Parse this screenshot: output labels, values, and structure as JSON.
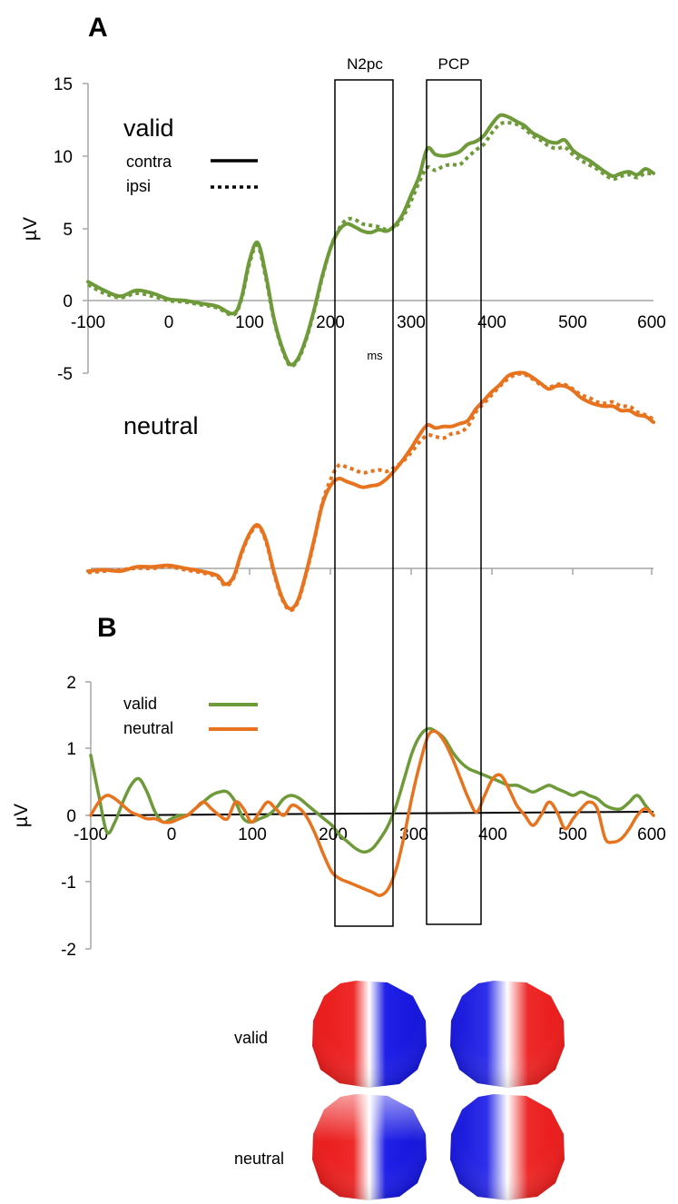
{
  "colors": {
    "valid": "#6e9a3a",
    "neutral": "#e8731e",
    "axis": "#a6a6a6",
    "red": "#e81818",
    "blue": "#1616e0"
  },
  "panel_a": {
    "letter": "A",
    "valid_title": "valid",
    "neutral_title": "neutral",
    "legend_contra": "contra",
    "legend_ipsi": "ipsi",
    "ylabel": "µV",
    "xunit": "ms",
    "yticks": [
      "15",
      "10",
      "5",
      "0",
      "-5"
    ],
    "xticks": [
      "-100",
      "0",
      "100",
      "200",
      "300",
      "400",
      "500",
      "600"
    ]
  },
  "panel_b": {
    "letter": "B",
    "ylabel": "µV",
    "legend_valid": "valid",
    "legend_neutral": "neutral",
    "yticks": [
      "2",
      "1",
      "0",
      "-1",
      "-2"
    ],
    "xticks": [
      "-100",
      "0",
      "100",
      "200",
      "300",
      "400",
      "500",
      "600"
    ]
  },
  "windows": {
    "n2pc": "N2pc",
    "pcp": "PCP"
  },
  "topo": {
    "row1": "valid",
    "row2": "neutral"
  },
  "chart_data": [
    {
      "type": "line",
      "title": "valid",
      "xlabel": "ms",
      "ylabel": "µV",
      "xlim": [
        -100,
        600
      ],
      "ylim": [
        -5,
        15
      ],
      "series": [
        {
          "name": "contra",
          "x": [
            -100,
            -80,
            -60,
            -40,
            -20,
            0,
            20,
            40,
            60,
            80,
            90,
            100,
            110,
            120,
            130,
            140,
            150,
            160,
            170,
            180,
            190,
            200,
            210,
            220,
            230,
            240,
            250,
            260,
            270,
            280,
            290,
            300,
            310,
            320,
            330,
            340,
            350,
            360,
            370,
            380,
            390,
            400,
            410,
            420,
            430,
            440,
            450,
            460,
            470,
            480,
            490,
            500,
            510,
            520,
            530,
            540,
            550,
            560,
            570,
            580,
            590,
            600
          ],
          "y": [
            1.3,
            0.7,
            0.3,
            0.7,
            0.5,
            0.1,
            0.0,
            -0.2,
            -0.4,
            -0.9,
            0.2,
            2.8,
            4.0,
            1.8,
            -1.2,
            -3.2,
            -4.4,
            -4.0,
            -2.6,
            -0.6,
            1.7,
            3.6,
            4.8,
            5.3,
            5.1,
            4.8,
            4.7,
            4.9,
            4.8,
            5.2,
            6.0,
            7.3,
            8.6,
            10.5,
            10.1,
            10.0,
            10.1,
            10.3,
            10.8,
            11.0,
            11.4,
            12.2,
            12.8,
            12.7,
            12.4,
            12.1,
            11.6,
            11.3,
            11.0,
            10.9,
            11.1,
            10.4,
            10.0,
            9.7,
            9.3,
            8.9,
            8.6,
            8.8,
            8.9,
            8.7,
            9.1,
            8.8
          ]
        },
        {
          "name": "ipsi",
          "x": [
            -100,
            -80,
            -60,
            -40,
            -20,
            0,
            20,
            40,
            60,
            80,
            90,
            100,
            110,
            120,
            130,
            140,
            150,
            160,
            170,
            180,
            190,
            200,
            210,
            220,
            230,
            240,
            250,
            260,
            270,
            280,
            290,
            300,
            310,
            320,
            330,
            340,
            350,
            360,
            370,
            380,
            390,
            400,
            410,
            420,
            430,
            440,
            450,
            460,
            470,
            480,
            490,
            500,
            510,
            520,
            530,
            540,
            550,
            560,
            570,
            580,
            590,
            600
          ],
          "y": [
            1.1,
            0.5,
            0.2,
            0.5,
            0.3,
            0.0,
            -0.1,
            -0.3,
            -0.5,
            -1.0,
            0.1,
            2.6,
            3.8,
            1.6,
            -1.3,
            -3.3,
            -4.5,
            -4.1,
            -2.7,
            -0.7,
            1.6,
            3.6,
            4.9,
            5.6,
            5.6,
            5.3,
            5.2,
            5.1,
            4.9,
            5.1,
            5.8,
            6.9,
            8.2,
            9.2,
            9.0,
            9.3,
            9.4,
            9.4,
            9.9,
            10.4,
            10.8,
            11.6,
            12.2,
            12.3,
            12.2,
            11.9,
            11.4,
            11.1,
            10.7,
            10.5,
            10.6,
            10.1,
            9.7,
            9.4,
            9.1,
            8.7,
            8.4,
            8.6,
            8.7,
            8.5,
            8.8,
            8.7
          ]
        }
      ]
    },
    {
      "type": "line",
      "title": "neutral",
      "xlim": [
        -100,
        600
      ],
      "series": [
        {
          "name": "contra",
          "x": [
            -100,
            -80,
            -60,
            -40,
            -20,
            0,
            20,
            40,
            60,
            70,
            80,
            90,
            100,
            110,
            120,
            130,
            140,
            150,
            160,
            170,
            180,
            190,
            200,
            210,
            220,
            230,
            240,
            250,
            260,
            270,
            280,
            290,
            300,
            310,
            320,
            330,
            340,
            350,
            360,
            370,
            380,
            390,
            400,
            410,
            420,
            430,
            440,
            450,
            460,
            470,
            480,
            490,
            500,
            510,
            520,
            530,
            540,
            550,
            560,
            570,
            580,
            590,
            600
          ],
          "y": [
            -10.8,
            -10.7,
            -10.8,
            -10.5,
            -10.5,
            -10.4,
            -10.6,
            -10.8,
            -11.1,
            -11.7,
            -11.2,
            -9.5,
            -8.2,
            -7.6,
            -8.6,
            -10.8,
            -12.6,
            -13.4,
            -12.8,
            -10.9,
            -8.6,
            -6.2,
            -4.9,
            -4.4,
            -4.6,
            -4.8,
            -5.0,
            -4.9,
            -4.8,
            -4.4,
            -3.8,
            -3.1,
            -2.3,
            -1.4,
            -0.7,
            -0.9,
            -0.8,
            -0.8,
            -0.6,
            -0.4,
            0.4,
            1.0,
            1.6,
            2.1,
            2.7,
            2.9,
            2.9,
            2.6,
            2.2,
            1.8,
            2.0,
            2.0,
            1.7,
            1.2,
            0.9,
            0.7,
            0.6,
            0.6,
            0.3,
            0.3,
            0.0,
            -0.1,
            -0.5
          ]
        },
        {
          "name": "ipsi",
          "x": [
            -100,
            -80,
            -60,
            -40,
            -20,
            0,
            20,
            40,
            60,
            70,
            80,
            90,
            100,
            110,
            120,
            130,
            140,
            150,
            160,
            170,
            180,
            190,
            200,
            210,
            220,
            230,
            240,
            250,
            260,
            270,
            280,
            290,
            300,
            310,
            320,
            330,
            340,
            350,
            360,
            370,
            380,
            390,
            400,
            410,
            420,
            430,
            440,
            450,
            460,
            470,
            480,
            490,
            500,
            510,
            520,
            530,
            540,
            550,
            560,
            570,
            580,
            590,
            600
          ],
          "y": [
            -10.9,
            -10.8,
            -10.7,
            -10.6,
            -10.6,
            -10.5,
            -10.7,
            -10.9,
            -11.2,
            -11.8,
            -11.3,
            -9.6,
            -8.3,
            -7.7,
            -8.7,
            -10.9,
            -12.7,
            -13.5,
            -12.9,
            -11.0,
            -8.7,
            -6.1,
            -4.5,
            -3.5,
            -3.6,
            -3.8,
            -4.0,
            -3.9,
            -3.8,
            -3.9,
            -3.6,
            -3.2,
            -2.6,
            -1.9,
            -1.4,
            -1.5,
            -1.6,
            -1.3,
            -1.2,
            -0.8,
            0.2,
            0.8,
            1.4,
            2.0,
            2.5,
            2.8,
            2.8,
            2.5,
            2.1,
            1.9,
            2.1,
            2.1,
            1.8,
            1.4,
            1.2,
            0.9,
            0.8,
            0.9,
            0.6,
            0.6,
            0.2,
            0.0,
            -0.3
          ]
        }
      ]
    },
    {
      "type": "line",
      "xlim": [
        -100,
        600
      ],
      "ylim": [
        -2,
        2
      ],
      "ylabel": "µV",
      "series": [
        {
          "name": "valid",
          "x": [
            -100,
            -90,
            -80,
            -70,
            -60,
            -50,
            -40,
            -30,
            -20,
            -10,
            0,
            10,
            20,
            30,
            40,
            50,
            60,
            70,
            80,
            90,
            100,
            110,
            120,
            130,
            140,
            150,
            160,
            170,
            180,
            190,
            200,
            210,
            220,
            230,
            240,
            250,
            260,
            270,
            280,
            290,
            300,
            310,
            320,
            330,
            340,
            350,
            360,
            370,
            380,
            390,
            400,
            410,
            420,
            430,
            440,
            450,
            460,
            470,
            480,
            490,
            500,
            510,
            520,
            530,
            540,
            550,
            560,
            570,
            580,
            590,
            600
          ],
          "y": [
            0.9,
            0.3,
            -0.25,
            -0.1,
            0.2,
            0.45,
            0.55,
            0.35,
            0.05,
            -0.1,
            -0.05,
            0.0,
            0.0,
            0.1,
            0.2,
            0.3,
            0.35,
            0.35,
            0.2,
            -0.05,
            -0.1,
            -0.05,
            0.0,
            0.1,
            0.25,
            0.3,
            0.25,
            0.15,
            0.05,
            -0.05,
            -0.15,
            -0.3,
            -0.4,
            -0.5,
            -0.55,
            -0.5,
            -0.35,
            -0.15,
            0.15,
            0.55,
            0.95,
            1.2,
            1.3,
            1.25,
            1.15,
            0.95,
            0.8,
            0.7,
            0.65,
            0.6,
            0.55,
            0.5,
            0.45,
            0.45,
            0.4,
            0.35,
            0.4,
            0.45,
            0.4,
            0.35,
            0.3,
            0.35,
            0.3,
            0.25,
            0.15,
            0.1,
            0.1,
            0.2,
            0.3,
            0.15,
            0.0
          ]
        },
        {
          "name": "neutral",
          "x": [
            -100,
            -90,
            -80,
            -70,
            -60,
            -50,
            -40,
            -30,
            -20,
            -10,
            0,
            10,
            20,
            30,
            40,
            50,
            60,
            70,
            80,
            90,
            100,
            110,
            120,
            130,
            140,
            150,
            160,
            170,
            180,
            190,
            200,
            210,
            220,
            230,
            240,
            250,
            260,
            270,
            280,
            290,
            300,
            310,
            320,
            330,
            340,
            350,
            360,
            370,
            380,
            390,
            400,
            410,
            420,
            430,
            440,
            450,
            460,
            470,
            480,
            490,
            500,
            510,
            520,
            530,
            540,
            550,
            560,
            570,
            580,
            590,
            600
          ],
          "y": [
            0.0,
            0.2,
            0.3,
            0.25,
            0.15,
            0.05,
            0.0,
            -0.05,
            -0.05,
            -0.1,
            -0.1,
            -0.05,
            0.0,
            0.1,
            0.2,
            0.1,
            0.0,
            -0.05,
            0.2,
            0.1,
            -0.1,
            0.05,
            0.2,
            0.1,
            0.0,
            0.15,
            0.1,
            -0.05,
            -0.3,
            -0.6,
            -0.85,
            -0.95,
            -1.0,
            -1.05,
            -1.1,
            -1.15,
            -1.2,
            -1.1,
            -0.8,
            -0.3,
            0.3,
            0.8,
            1.2,
            1.25,
            1.1,
            0.85,
            0.55,
            0.25,
            0.05,
            0.3,
            0.55,
            0.6,
            0.4,
            0.15,
            0.0,
            -0.15,
            0.0,
            0.2,
            0.05,
            -0.2,
            -0.05,
            0.1,
            0.2,
            0.1,
            -0.35,
            -0.4,
            -0.35,
            -0.2,
            0.0,
            0.1,
            0.0
          ]
        }
      ]
    }
  ]
}
